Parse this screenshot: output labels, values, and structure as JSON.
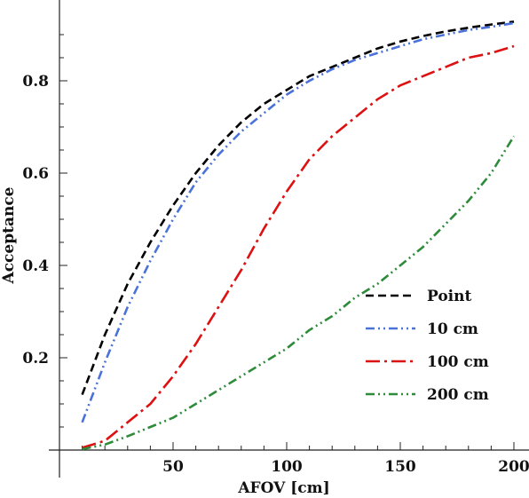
{
  "chart_data": {
    "type": "line",
    "title": "",
    "xlabel": "AFOV [cm]",
    "ylabel": "Acceptance",
    "xlim": [
      0,
      200
    ],
    "ylim": [
      0,
      0.95
    ],
    "x_ticks": [
      50,
      100,
      150,
      200
    ],
    "y_ticks": [
      0.2,
      0.4,
      0.6,
      0.8
    ],
    "x_tick_labels": [
      "50",
      "100",
      "150",
      "200"
    ],
    "y_tick_labels": [
      "0.2",
      "0.4",
      "0.6",
      "0.8"
    ],
    "grid": false,
    "legend_position": "bottom-right",
    "x": [
      10,
      20,
      30,
      40,
      50,
      60,
      70,
      80,
      90,
      100,
      110,
      120,
      130,
      140,
      150,
      160,
      170,
      180,
      190,
      200
    ],
    "series": [
      {
        "name": "Point",
        "color": "#000000",
        "dash": "dashed",
        "values": [
          0.12,
          0.25,
          0.36,
          0.45,
          0.53,
          0.6,
          0.66,
          0.71,
          0.75,
          0.78,
          0.81,
          0.83,
          0.85,
          0.87,
          0.885,
          0.897,
          0.907,
          0.915,
          0.922,
          0.928
        ]
      },
      {
        "name": "10 cm",
        "color": "#4a72d8",
        "dash": "dash-dot-dot",
        "values": [
          0.06,
          0.19,
          0.31,
          0.41,
          0.5,
          0.58,
          0.64,
          0.69,
          0.73,
          0.77,
          0.8,
          0.825,
          0.845,
          0.86,
          0.875,
          0.89,
          0.9,
          0.91,
          0.917,
          0.925
        ]
      },
      {
        "name": "100 cm",
        "color": "#dd1111",
        "dash": "dash-dot",
        "values": [
          0.005,
          0.02,
          0.06,
          0.1,
          0.16,
          0.23,
          0.31,
          0.39,
          0.48,
          0.56,
          0.63,
          0.68,
          0.72,
          0.76,
          0.79,
          0.81,
          0.83,
          0.85,
          0.86,
          0.875
        ]
      },
      {
        "name": "200 cm",
        "color": "#2e8b3a",
        "dash": "dash-dot-dot",
        "values": [
          0.002,
          0.012,
          0.03,
          0.05,
          0.07,
          0.1,
          0.13,
          0.16,
          0.19,
          0.22,
          0.26,
          0.29,
          0.33,
          0.36,
          0.4,
          0.44,
          0.49,
          0.54,
          0.6,
          0.68
        ]
      }
    ]
  }
}
